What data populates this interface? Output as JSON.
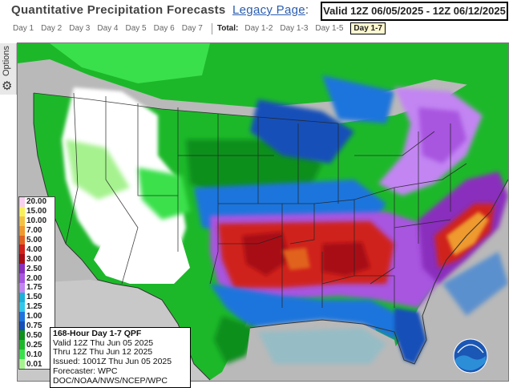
{
  "header": {
    "title": "Quantitative Precipitation Forecasts",
    "legacy_link": "Legacy Page",
    "colon": ":",
    "valid_range": "Valid 12Z 06/05/2025 - 12Z 06/12/2025"
  },
  "nav": {
    "days": [
      "Day 1",
      "Day 2",
      "Day 3",
      "Day 4",
      "Day 5",
      "Day 6",
      "Day 7"
    ],
    "total_label": "Total:",
    "totals": [
      "Day 1-2",
      "Day 1-3",
      "Day 1-5",
      "Day 1-7"
    ],
    "selected": "Day 1-7"
  },
  "options_label": "Options",
  "legend": {
    "values": [
      "20.00",
      "15.00",
      "10.00",
      "7.00",
      "5.00",
      "4.00",
      "3.00",
      "2.50",
      "2.00",
      "1.75",
      "1.50",
      "1.25",
      "1.00",
      "0.75",
      "0.50",
      "0.25",
      "0.10",
      "0.01"
    ],
    "colors": [
      "#f8d0f0",
      "#f7f05a",
      "#f2c343",
      "#ee9a2f",
      "#e0621f",
      "#d0201a",
      "#a80c14",
      "#8a2ebd",
      "#a855e0",
      "#c285f2",
      "#1db0d8",
      "#31c7ea",
      "#1e74dc",
      "#1550b8",
      "#0e8f1e",
      "#1db82a",
      "#3ae04c",
      "#a6f28f"
    ]
  },
  "info": {
    "title": "168-Hour Day 1-7 QPF",
    "valid": "Valid 12Z Thu Jun 05 2025",
    "thru": "Thru 12Z Thu Jun 12 2025",
    "issued": "Issued: 1001Z Thu Jun 05 2025",
    "forecaster": "Forecaster: WPC",
    "org": "DOC/NOAA/NWS/NCEP/WPC"
  },
  "logo_text": "NOAA",
  "colors": {
    "ocean": "#b9b9b9",
    "dry_land": "#ffffff",
    "link": "#2a5db0"
  }
}
